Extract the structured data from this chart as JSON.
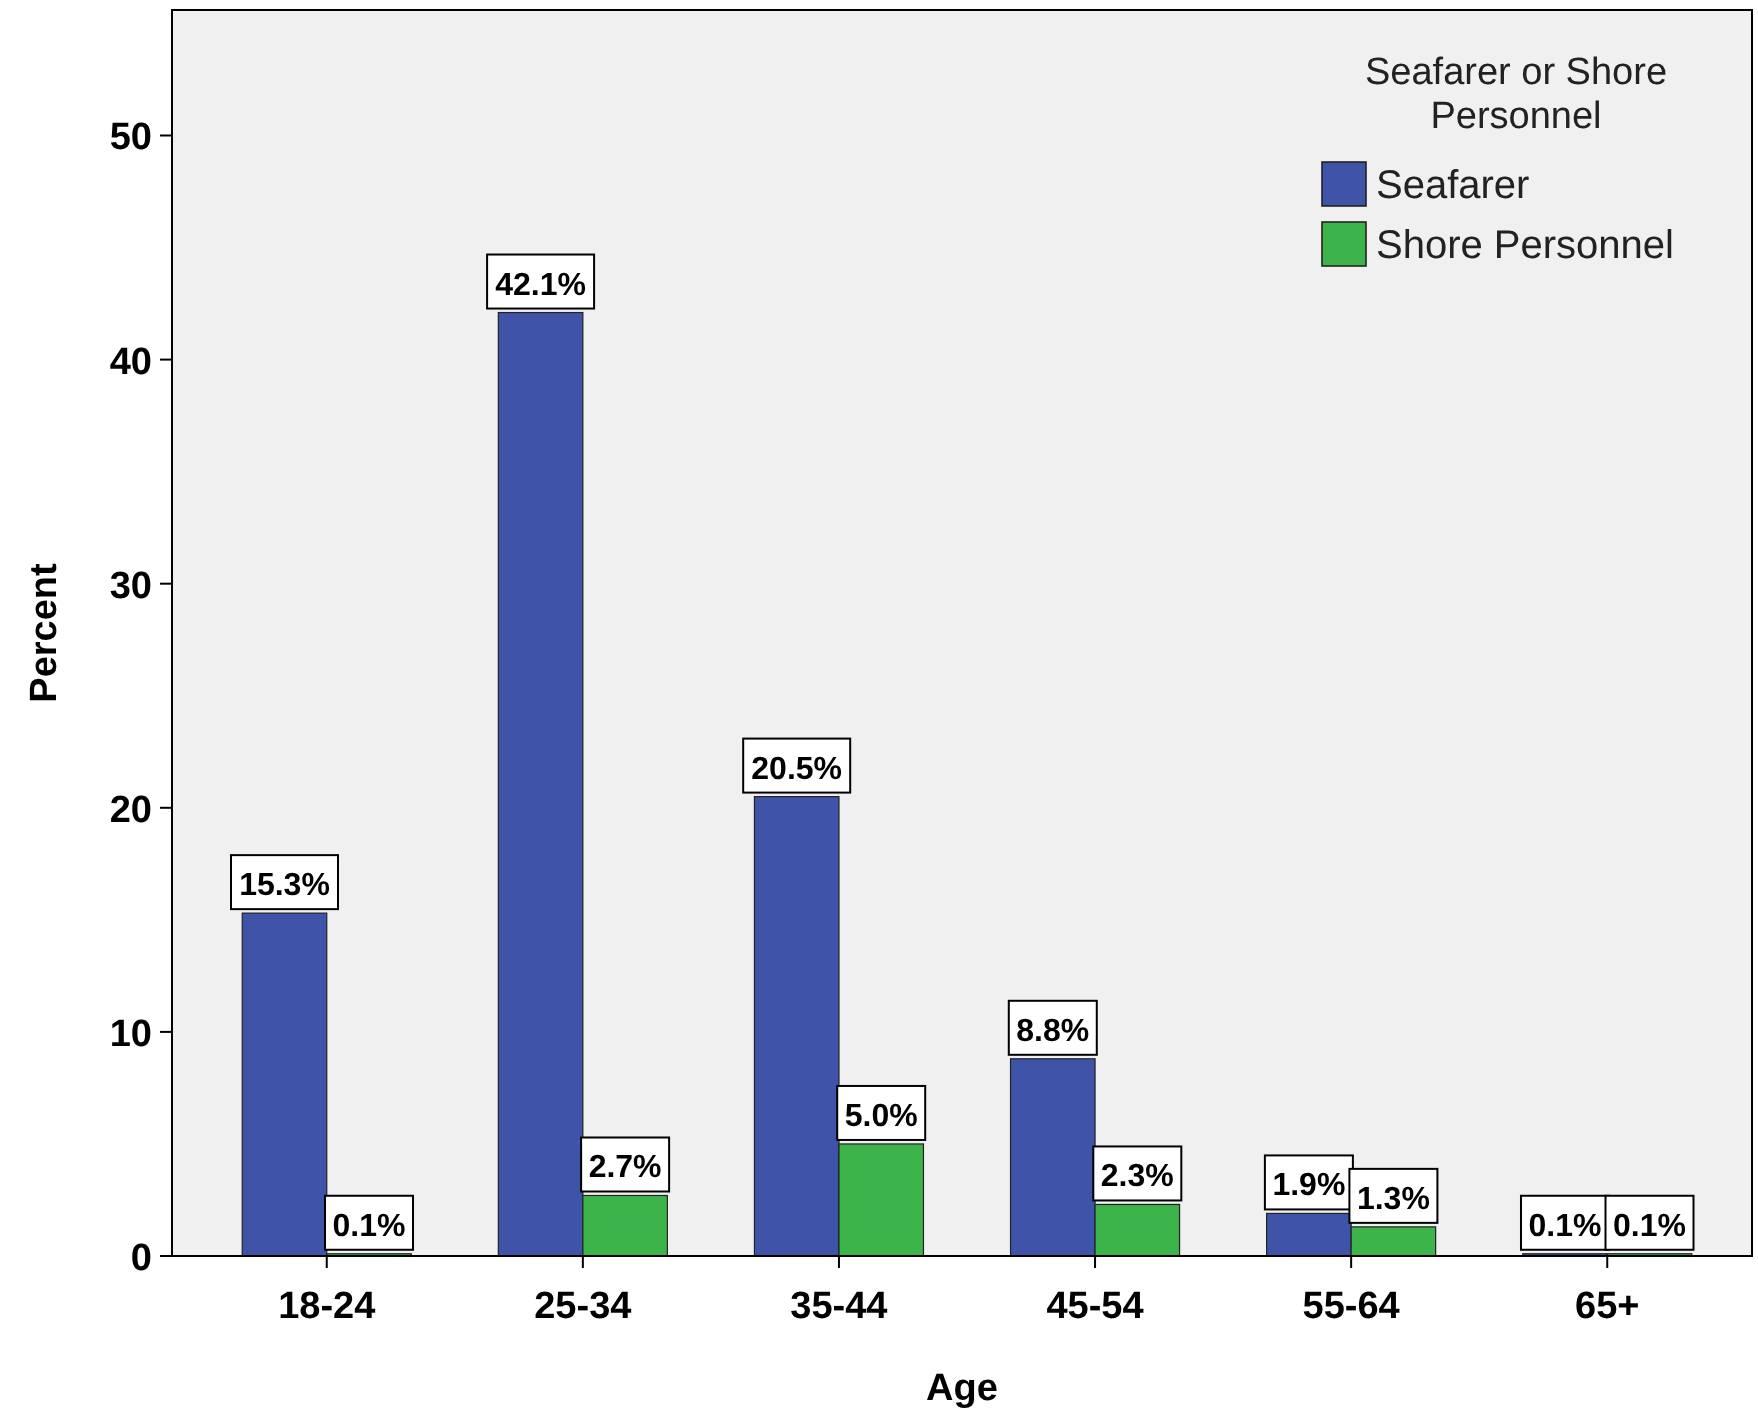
{
  "chart_data": {
    "type": "bar",
    "xlabel": "Age",
    "ylabel": "Percent",
    "legend_title": "Seafarer or Shore Personnel",
    "legend": "top right",
    "grid": false,
    "categories": [
      "18-24",
      "25-34",
      "35-44",
      "45-54",
      "55-64",
      "65+"
    ],
    "ylim": [
      0,
      55.6
    ],
    "yticks": [
      0,
      10,
      20,
      30,
      40,
      50
    ],
    "series": [
      {
        "name": "Seafarer",
        "color": "#3f54a8",
        "values": [
          15.3,
          42.1,
          20.5,
          8.8,
          1.9,
          0.1
        ],
        "value_labels": [
          "15.3%",
          "42.1%",
          "20.5%",
          "8.8%",
          "1.9%",
          "0.1%"
        ]
      },
      {
        "name": "Shore Personnel",
        "color": "#3cb44a",
        "values": [
          0.1,
          2.7,
          5.0,
          2.3,
          1.3,
          0.1
        ],
        "value_labels": [
          "0.1%",
          "2.7%",
          "5.0%",
          "2.3%",
          "1.3%",
          "0.1%"
        ]
      }
    ]
  }
}
